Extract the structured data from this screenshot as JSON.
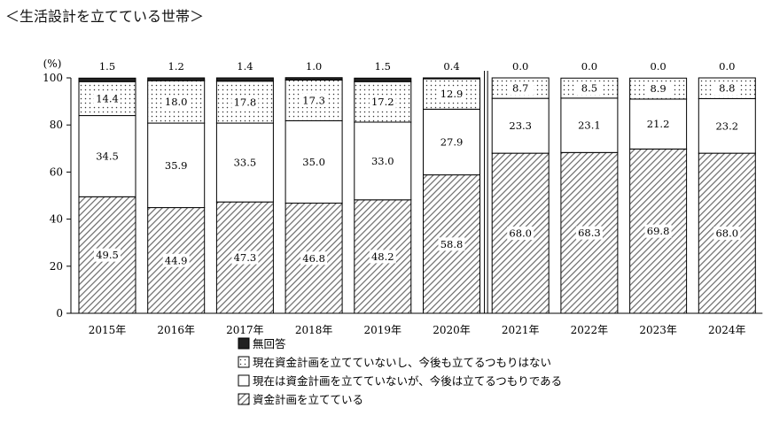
{
  "title": "＜生活設計を立てている世帯＞",
  "chart_data": {
    "type": "bar",
    "stacked": true,
    "unit_label": "(%)",
    "categories": [
      "2015年",
      "2016年",
      "2017年",
      "2018年",
      "2019年",
      "2020年",
      "2021年",
      "2022年",
      "2023年",
      "2024年"
    ],
    "ylim": [
      0,
      100
    ],
    "yticks": [
      "0",
      "20",
      "40",
      "60",
      "80",
      "100"
    ],
    "series": [
      {
        "name": "資金計画を立てている",
        "fill": "hatch",
        "color": "#555555",
        "values": [
          49.5,
          44.9,
          47.3,
          46.8,
          48.2,
          58.8,
          68.0,
          68.3,
          69.8,
          68.0
        ],
        "labels": [
          "49.5",
          "44.9",
          "47.3",
          "46.8",
          "48.2",
          "58.8",
          "68.0",
          "68.3",
          "69.8",
          "68.0"
        ]
      },
      {
        "name": "現在は資金計画を立てていないが、今後は立てるつもりである",
        "fill": "white",
        "color": "#ffffff",
        "values": [
          34.5,
          35.9,
          33.5,
          35.0,
          33.0,
          27.9,
          23.3,
          23.1,
          21.2,
          23.2
        ],
        "labels": [
          "34.5",
          "35.9",
          "33.5",
          "35.0",
          "33.0",
          "27.9",
          "23.3",
          "23.1",
          "21.2",
          "23.2"
        ]
      },
      {
        "name": "現在資金計画を立てていないし、今後も立てるつもりはない",
        "fill": "dots",
        "color": "#ffffff",
        "values": [
          14.4,
          18.0,
          17.8,
          17.3,
          17.2,
          12.9,
          8.7,
          8.5,
          8.9,
          8.8
        ],
        "labels": [
          "14.4",
          "18.0",
          "17.8",
          "17.3",
          "17.2",
          "12.9",
          "8.7",
          "8.5",
          "8.9",
          "8.8"
        ]
      },
      {
        "name": "無回答",
        "fill": "solid",
        "color": "#222222",
        "values": [
          1.5,
          1.2,
          1.4,
          1.0,
          1.5,
          0.4,
          0.0,
          0.0,
          0.0,
          0.0
        ],
        "labels": [
          "1.5",
          "1.2",
          "1.4",
          "1.0",
          "1.5",
          "0.4",
          "0.0",
          "0.0",
          "0.0",
          "0.0"
        ]
      }
    ],
    "legend": {
      "placement": "bottom-left",
      "order": [
        "無回答",
        "現在資金計画を立てていないし、今後も立てるつもりはない",
        "現在は資金計画を立てていないが、今後は立てるつもりである",
        "資金計画を立てている"
      ]
    },
    "break_between": [
      "2020年",
      "2021年"
    ]
  }
}
